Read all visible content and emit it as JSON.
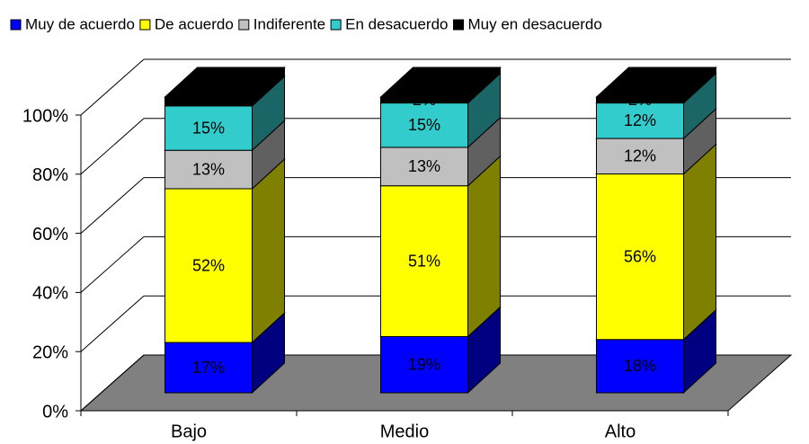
{
  "chart_data": {
    "type": "bar3d_stacked",
    "categories": [
      "Bajo",
      "Medio",
      "Alto"
    ],
    "series": [
      {
        "name": "Muy de acuerdo",
        "color": "#0000ff",
        "side": "#000080",
        "values": [
          17,
          19,
          18
        ],
        "value_labels": [
          "17%",
          "19%",
          "18%"
        ]
      },
      {
        "name": "De acuerdo",
        "color": "#ffff00",
        "side": "#808000",
        "values": [
          52,
          51,
          56
        ],
        "value_labels": [
          "52%",
          "51%",
          "56%"
        ]
      },
      {
        "name": "Indiferente",
        "color": "#c0c0c0",
        "side": "#606060",
        "values": [
          13,
          13,
          12
        ],
        "value_labels": [
          "13%",
          "13%",
          "12%"
        ]
      },
      {
        "name": "En desacuerdo",
        "color": "#33cccc",
        "side": "#1a6666",
        "values": [
          15,
          15,
          12
        ],
        "value_labels": [
          "15%",
          "15%",
          "12%"
        ]
      },
      {
        "name": "Muy en desacuerdo",
        "color": "#000000",
        "side": "#000000",
        "values": [
          3,
          2,
          2
        ],
        "value_labels": [
          "3%",
          "2%",
          "2%"
        ]
      }
    ],
    "ylim": [
      0,
      100
    ],
    "yticks": [
      {
        "value": 0,
        "label": "0%"
      },
      {
        "value": 20,
        "label": "20%"
      },
      {
        "value": 40,
        "label": "40%"
      },
      {
        "value": 60,
        "label": "60%"
      },
      {
        "value": 80,
        "label": "80%"
      },
      {
        "value": 100,
        "label": "100%"
      }
    ],
    "grid": true,
    "legend": "top"
  }
}
